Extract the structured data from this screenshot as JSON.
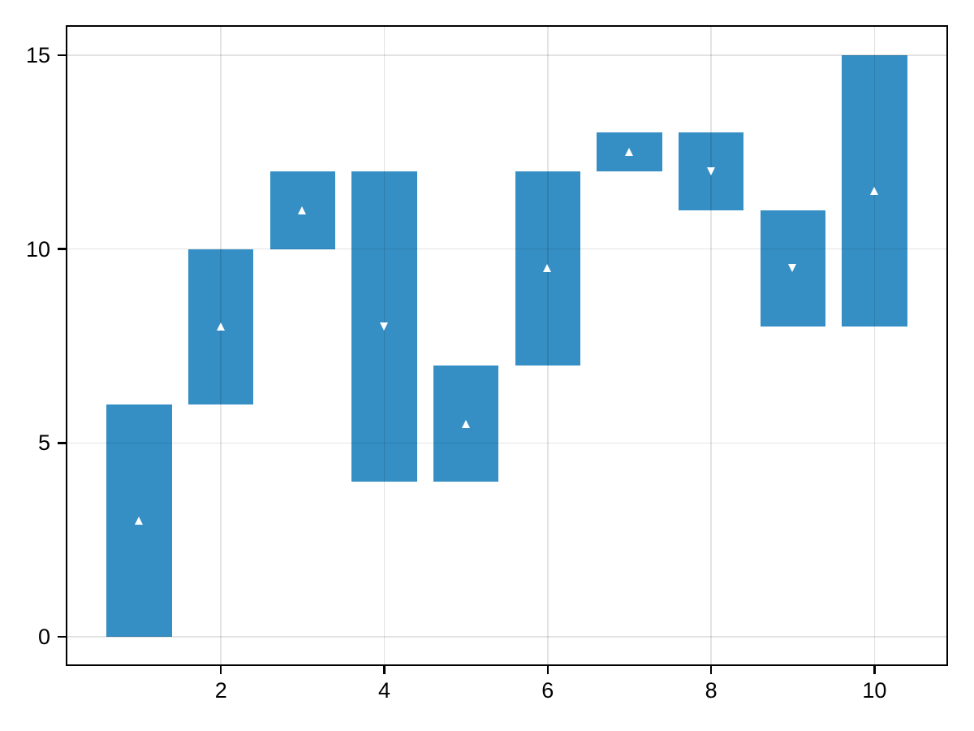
{
  "chart_data": {
    "type": "bar",
    "variant": "floating-range-bars-with-direction-markers",
    "title": "",
    "xlabel": "",
    "ylabel": "",
    "categories": [
      1,
      2,
      3,
      4,
      5,
      6,
      7,
      8,
      9,
      10
    ],
    "bars": [
      {
        "x": 1,
        "low": 0,
        "high": 6,
        "marker_y": 3,
        "direction": "up"
      },
      {
        "x": 2,
        "low": 6,
        "high": 10,
        "marker_y": 8,
        "direction": "up"
      },
      {
        "x": 3,
        "low": 10,
        "high": 12,
        "marker_y": 11,
        "direction": "up"
      },
      {
        "x": 4,
        "low": 4,
        "high": 12,
        "marker_y": 8,
        "direction": "down"
      },
      {
        "x": 5,
        "low": 4,
        "high": 7,
        "marker_y": 5.5,
        "direction": "up"
      },
      {
        "x": 6,
        "low": 7,
        "high": 12,
        "marker_y": 9.5,
        "direction": "up"
      },
      {
        "x": 7,
        "low": 12,
        "high": 13,
        "marker_y": 12.5,
        "direction": "up"
      },
      {
        "x": 8,
        "low": 11,
        "high": 13,
        "marker_y": 12,
        "direction": "down"
      },
      {
        "x": 9,
        "low": 8,
        "high": 11,
        "marker_y": 9.5,
        "direction": "down"
      },
      {
        "x": 10,
        "low": 8,
        "high": 15,
        "marker_y": 11.5,
        "direction": "up"
      }
    ],
    "bar_width": 0.8,
    "x_ticks": [
      2,
      4,
      6,
      8,
      10
    ],
    "y_ticks": [
      0,
      5,
      10,
      15
    ],
    "xlim": [
      0.11,
      10.89
    ],
    "ylim": [
      -0.75,
      15.75
    ],
    "grid": true,
    "grid_on_top_of_bars": true,
    "legend": "none",
    "colors": {
      "bar": "#358FC4",
      "marker": "#FFFFFF",
      "grid_line": "rgba(0,0,0,0.11)",
      "spine": "#000000",
      "tick_label": "#000000",
      "background": "#FFFFFF"
    }
  }
}
